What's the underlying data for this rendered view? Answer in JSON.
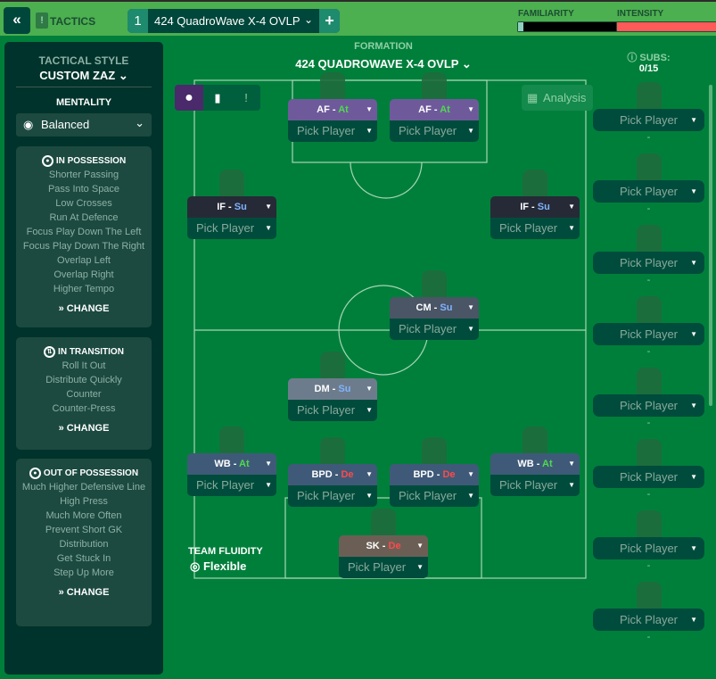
{
  "topbar": {
    "back_icon": "double-chevron-left",
    "tactics_label": "TACTICS",
    "tactic_slot": "1",
    "tactic_name": "424 QuadroWave X-4 OVLP",
    "add_icon": "+",
    "familiarity_label": "FAMILIARITY",
    "familiarity_level": 0.05,
    "intensity_label": "INTENSITY",
    "intensity_level": 0.98,
    "intensity_color": "#ff5a5a"
  },
  "sidebar": {
    "style_label": "TACTICAL STYLE",
    "style_value": "CUSTOM ZAZ",
    "mentality_label": "MENTALITY",
    "mentality_value": "Balanced",
    "cards": [
      {
        "title": "IN POSSESSION",
        "items": [
          "Shorter Passing",
          "Pass Into Space",
          "Low Crosses",
          "Run At Defence",
          "Focus Play Down The Left",
          "Focus Play Down The Right",
          "Overlap Left",
          "Overlap Right",
          "Higher Tempo"
        ],
        "change": "CHANGE"
      },
      {
        "title": "IN TRANSITION",
        "items": [
          "Roll It Out",
          "Distribute Quickly",
          "Counter",
          "Counter-Press"
        ],
        "change": "CHANGE"
      },
      {
        "title": "OUT OF POSSESSION",
        "items": [
          "Much Higher Defensive Line",
          "High Press",
          "Much More Often",
          "Prevent Short GK Distribution",
          "Get Stuck In",
          "Step Up More"
        ],
        "change": "CHANGE"
      }
    ]
  },
  "formation": {
    "label": "FORMATION",
    "name": "424 QUADROWAVE X-4 OVLP",
    "analysis": "Analysis",
    "fluidity_label": "TEAM FLUIDITY",
    "fluidity_value": "Flexible"
  },
  "positions": [
    {
      "pos": "AF",
      "duty": "At",
      "pick": "Pick Player"
    },
    {
      "pos": "AF",
      "duty": "At",
      "pick": "Pick Player"
    },
    {
      "pos": "IF",
      "duty": "Su",
      "pick": "Pick Player"
    },
    {
      "pos": "IF",
      "duty": "Su",
      "pick": "Pick Player"
    },
    {
      "pos": "CM",
      "duty": "Su",
      "pick": "Pick Player"
    },
    {
      "pos": "DM",
      "duty": "Su",
      "pick": "Pick Player"
    },
    {
      "pos": "WB",
      "duty": "At",
      "pick": "Pick Player"
    },
    {
      "pos": "BPD",
      "duty": "De",
      "pick": "Pick Player"
    },
    {
      "pos": "BPD",
      "duty": "De",
      "pick": "Pick Player"
    },
    {
      "pos": "WB",
      "duty": "At",
      "pick": "Pick Player"
    },
    {
      "pos": "SK",
      "duty": "De",
      "pick": "Pick Player"
    }
  ],
  "subs": {
    "label": "SUBS:",
    "count": "0/15",
    "pick": "Pick Player",
    "empty": "-"
  }
}
